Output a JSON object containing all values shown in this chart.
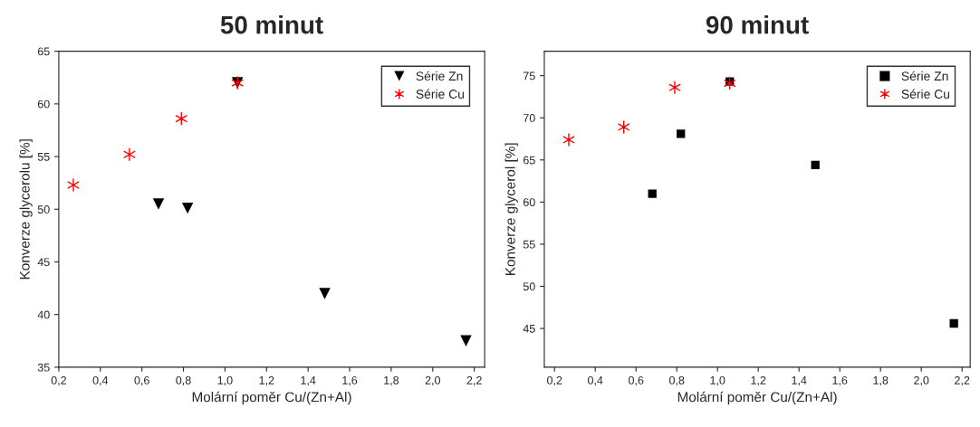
{
  "chart_data": [
    {
      "type": "scatter",
      "title": "50 minut",
      "xlabel": "Molární poměr Cu/(Zn+Al)",
      "ylabel": "Konverze glycerolu [%]",
      "xlim": [
        0.2,
        2.25
      ],
      "ylim": [
        35,
        65
      ],
      "xticks": [
        {
          "value": 0.2,
          "label": "0,2"
        },
        {
          "value": 0.4,
          "label": "0,4"
        },
        {
          "value": 0.6,
          "label": "0,6"
        },
        {
          "value": 0.8,
          "label": "0,8"
        },
        {
          "value": 1.0,
          "label": "1,0"
        },
        {
          "value": 1.2,
          "label": "1,2"
        },
        {
          "value": 1.4,
          "label": "1,4"
        },
        {
          "value": 1.6,
          "label": "1,6"
        },
        {
          "value": 1.8,
          "label": "1,8"
        },
        {
          "value": 2.0,
          "label": "2,0"
        },
        {
          "value": 2.2,
          "label": "2,2"
        }
      ],
      "yticks": [
        35,
        40,
        45,
        50,
        55,
        60,
        65
      ],
      "grid": false,
      "legend": "top right",
      "series": [
        {
          "name": "Série Zn",
          "color": "#000000",
          "marker": "triangle",
          "x": [
            0.68,
            0.82,
            1.06,
            1.48,
            2.16
          ],
          "values": [
            50.5,
            50.1,
            62.0,
            42.0,
            37.5
          ]
        },
        {
          "name": "Série Cu",
          "color": "#ff0000",
          "marker": "cross",
          "x": [
            0.27,
            0.54,
            0.79,
            1.06
          ],
          "values": [
            52.3,
            55.2,
            58.6,
            62.0
          ]
        }
      ]
    },
    {
      "type": "scatter",
      "title": "90 minut",
      "xlabel": "Molární poměr Cu/(Zn+Al)",
      "ylabel": "Konverze glycerol [%]",
      "xlim": [
        0.15,
        2.24
      ],
      "ylim": [
        40.4,
        77.9
      ],
      "xticks": [
        {
          "value": 0.2,
          "label": "0,2"
        },
        {
          "value": 0.4,
          "label": "0,4"
        },
        {
          "value": 0.6,
          "label": "0,6"
        },
        {
          "value": 0.8,
          "label": "0,8"
        },
        {
          "value": 1.0,
          "label": "1,0"
        },
        {
          "value": 1.2,
          "label": "1,2"
        },
        {
          "value": 1.4,
          "label": "1,4"
        },
        {
          "value": 1.6,
          "label": "1,6"
        },
        {
          "value": 1.8,
          "label": "1,8"
        },
        {
          "value": 2.0,
          "label": "2,0"
        },
        {
          "value": 2.2,
          "label": "2,2"
        }
      ],
      "yticks": [
        45,
        50,
        55,
        60,
        65,
        70,
        75
      ],
      "grid": false,
      "legend": "top right",
      "series": [
        {
          "name": "Série Zn",
          "color": "#000000",
          "marker": "square",
          "x": [
            0.68,
            0.82,
            1.06,
            1.48,
            2.16
          ],
          "values": [
            61.0,
            68.1,
            74.3,
            64.4,
            45.6
          ]
        },
        {
          "name": "Série Cu",
          "color": "#ff0000",
          "marker": "cross",
          "x": [
            0.27,
            0.54,
            0.79,
            1.06
          ],
          "values": [
            67.4,
            68.9,
            73.6,
            74.1
          ]
        }
      ]
    }
  ]
}
